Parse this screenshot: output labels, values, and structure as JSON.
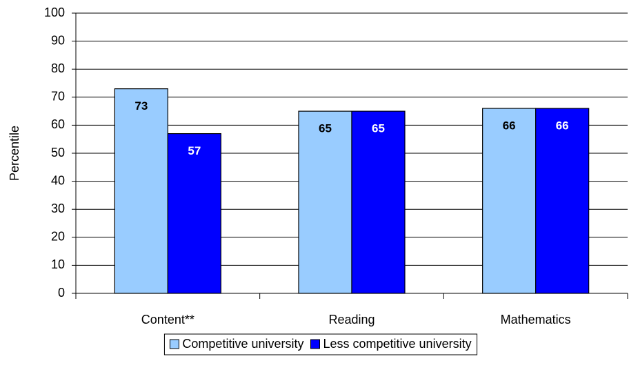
{
  "chart_data": {
    "type": "bar",
    "y_label": "Percentile",
    "categories": [
      "Content**",
      "Reading",
      "Mathematics"
    ],
    "series": [
      {
        "name": "Competitive university",
        "color": "#99ccff",
        "label_color": "#000000",
        "values": [
          73,
          65,
          66
        ]
      },
      {
        "name": "Less competitive university",
        "color": "#0000ff",
        "label_color": "#ffffff",
        "values": [
          57,
          65,
          66
        ]
      }
    ],
    "ylim": [
      0,
      100
    ],
    "yticks": [
      0,
      10,
      20,
      30,
      40,
      50,
      60,
      70,
      80,
      90,
      100
    ],
    "grid": true,
    "legend": "bottom"
  }
}
